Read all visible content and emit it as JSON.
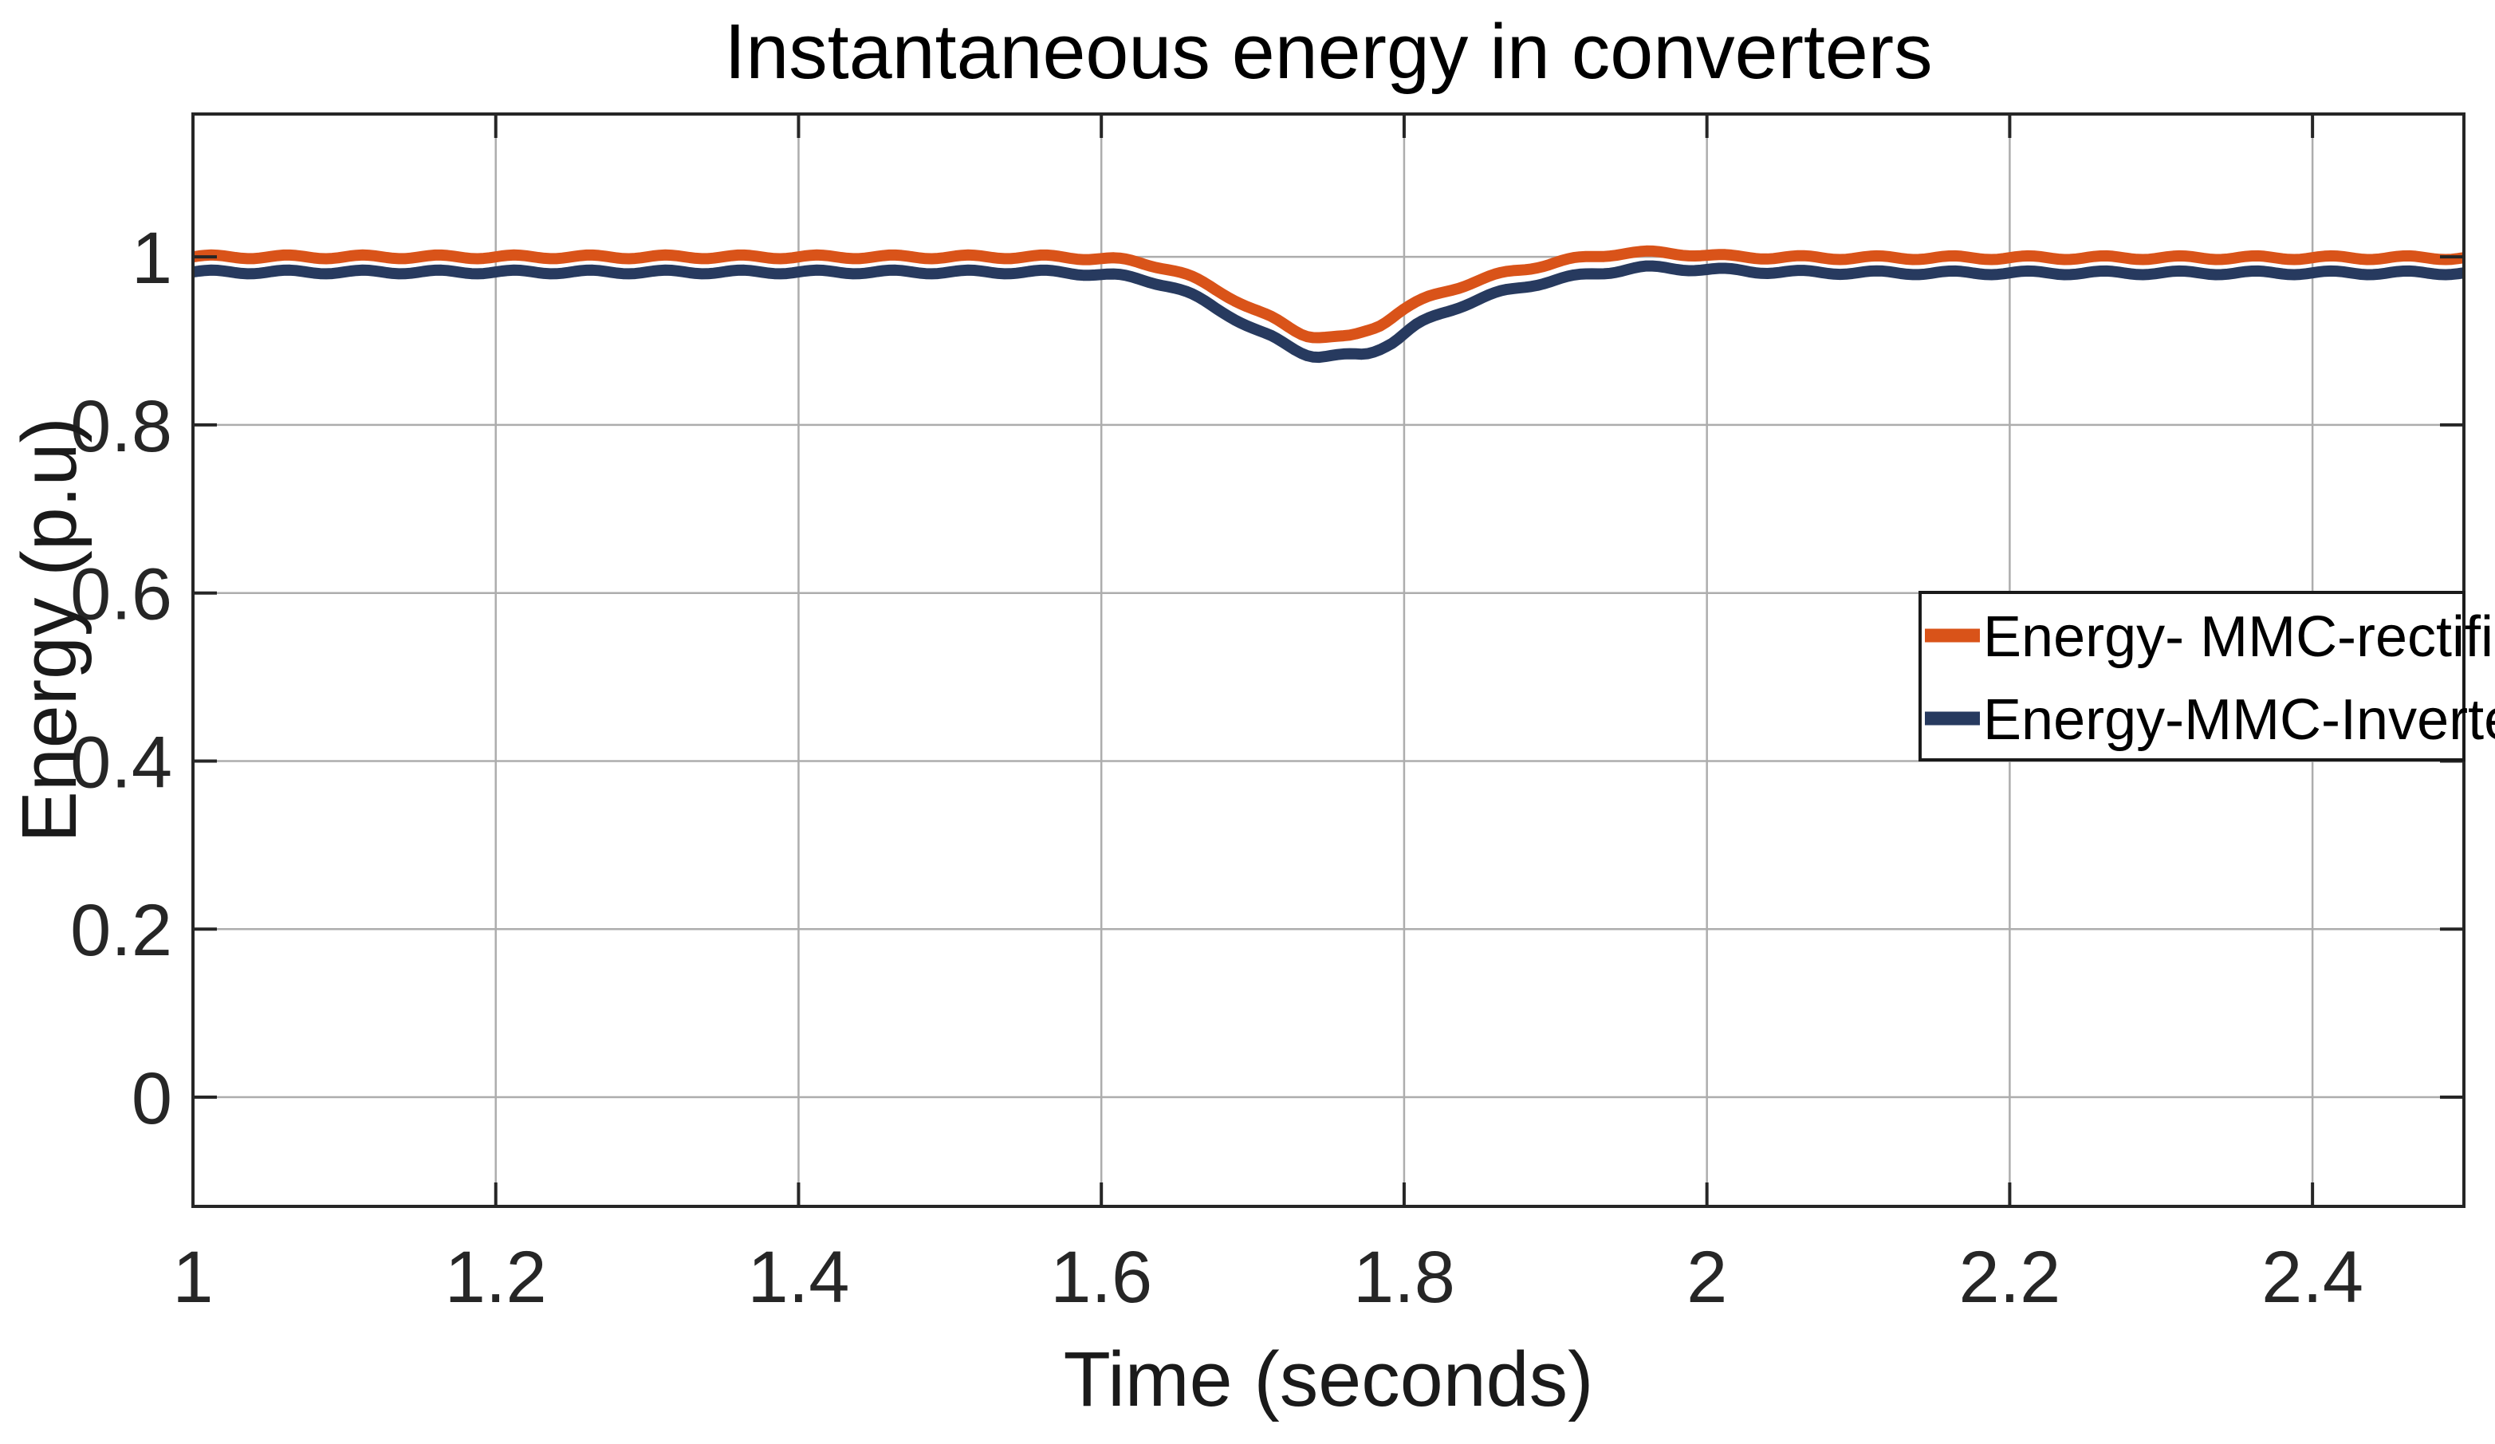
{
  "chart_data": {
    "type": "line",
    "title": "Instantaneous energy in converters",
    "xlabel": "Time (seconds)",
    "ylabel": "Energy (p.u)",
    "xlim": [
      1,
      2.5
    ],
    "ylim": [
      -0.13,
      1.17
    ],
    "grid": true,
    "background_color": "#ffffff",
    "axis_color": "#262626",
    "grid_color": "#adadad",
    "tick_label_color": "#262626",
    "xticks": {
      "values": [
        1,
        1.2,
        1.4,
        1.6,
        1.8,
        2,
        2.2,
        2.4
      ],
      "labels": [
        "1",
        "1.2",
        "1.4",
        "1.6",
        "1.8",
        "2",
        "2.2",
        "2.4"
      ]
    },
    "yticks": {
      "values": [
        0,
        0.2,
        0.4,
        0.6,
        0.8,
        1
      ],
      "labels": [
        "0",
        "0.2",
        "0.4",
        "0.6",
        "0.8",
        "1"
      ]
    },
    "legend": {
      "position": "middle-right",
      "border_color": "#1a1a1a",
      "background": "#ffffff"
    },
    "ripple": {
      "amplitude": 0.0022,
      "period": 0.05
    },
    "series": [
      {
        "name": "Energy- MMC-rectifier",
        "color": "#D95319",
        "line_width": 14,
        "points": [
          [
            1.0,
            1.0
          ],
          [
            1.1,
            1.0
          ],
          [
            1.2,
            1.0
          ],
          [
            1.3,
            1.0
          ],
          [
            1.4,
            1.0
          ],
          [
            1.5,
            1.0
          ],
          [
            1.56,
            1.0
          ],
          [
            1.6,
            0.998
          ],
          [
            1.64,
            0.988
          ],
          [
            1.68,
            0.957
          ],
          [
            1.71,
            0.929
          ],
          [
            1.74,
            0.906
          ],
          [
            1.76,
            0.904
          ],
          [
            1.78,
            0.916
          ],
          [
            1.8,
            0.938
          ],
          [
            1.84,
            0.967
          ],
          [
            1.88,
            0.986
          ],
          [
            1.92,
            0.999
          ],
          [
            1.95,
            1.005
          ],
          [
            1.98,
            1.004
          ],
          [
            2.02,
            1.0
          ],
          [
            2.1,
            0.999
          ],
          [
            2.2,
            0.999
          ],
          [
            2.3,
            0.999
          ],
          [
            2.4,
            0.999
          ],
          [
            2.5,
            0.999
          ]
        ]
      },
      {
        "name": "Energy-MMC-Inverter",
        "color": "#273A5F",
        "line_width": 14,
        "points": [
          [
            1.0,
            0.982
          ],
          [
            1.1,
            0.982
          ],
          [
            1.2,
            0.982
          ],
          [
            1.3,
            0.982
          ],
          [
            1.4,
            0.982
          ],
          [
            1.5,
            0.982
          ],
          [
            1.56,
            0.982
          ],
          [
            1.6,
            0.979
          ],
          [
            1.64,
            0.968
          ],
          [
            1.68,
            0.935
          ],
          [
            1.71,
            0.906
          ],
          [
            1.745,
            0.882
          ],
          [
            1.77,
            0.883
          ],
          [
            1.79,
            0.897
          ],
          [
            1.81,
            0.92
          ],
          [
            1.85,
            0.95
          ],
          [
            1.89,
            0.969
          ],
          [
            1.93,
            0.981
          ],
          [
            1.96,
            0.987
          ],
          [
            2.0,
            0.985
          ],
          [
            2.05,
            0.982
          ],
          [
            2.15,
            0.981
          ],
          [
            2.3,
            0.981
          ],
          [
            2.4,
            0.981
          ],
          [
            2.5,
            0.981
          ]
        ]
      }
    ]
  }
}
